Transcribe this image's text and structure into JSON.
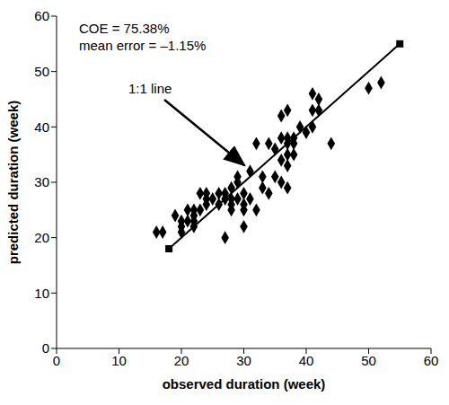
{
  "chart_data": {
    "type": "scatter",
    "x_label": "observed duration (week)",
    "y_label": "predicted duration (week)",
    "annotations": [
      "COE = 75.38%",
      "mean error = –1.15%",
      "1:1 line"
    ],
    "xlim": [
      0,
      60
    ],
    "ylim": [
      0,
      60
    ],
    "xticks": [
      0,
      10,
      20,
      30,
      40,
      50,
      60
    ],
    "yticks": [
      0,
      10,
      20,
      30,
      40,
      50,
      60
    ],
    "grid": false,
    "series": [
      {
        "type": "scatter",
        "marker": "diamond",
        "color": "#000000",
        "x": [
          16,
          17,
          19,
          20,
          20,
          20,
          21,
          21,
          22,
          22,
          22,
          22,
          23,
          23,
          24,
          24,
          24,
          25,
          26,
          26,
          27,
          27,
          27,
          28,
          28,
          28,
          28,
          29,
          29,
          29,
          30,
          30,
          30,
          30,
          31,
          31,
          32,
          32,
          33,
          33,
          34,
          34,
          35,
          35,
          36,
          36,
          36,
          36,
          37,
          37,
          37,
          37,
          37,
          37,
          38,
          38,
          38,
          39,
          40,
          41,
          41,
          41,
          42,
          42,
          44,
          50,
          52
        ],
        "values": [
          21,
          21,
          24,
          23,
          22,
          21,
          25,
          23,
          25,
          22,
          24,
          23,
          25,
          28,
          28,
          26,
          27,
          27,
          26,
          28,
          20,
          28,
          27,
          29,
          27,
          25,
          26,
          27,
          31,
          30,
          25,
          26,
          22,
          28,
          27,
          32,
          37,
          25,
          29,
          31,
          37,
          28,
          31,
          36,
          42,
          38,
          34,
          30,
          43,
          38,
          37,
          35,
          33,
          29,
          38,
          35,
          37,
          40,
          39,
          40,
          46,
          43,
          45,
          43,
          37,
          47,
          48
        ]
      },
      {
        "type": "line",
        "marker": "square",
        "color": "#000000",
        "x": [
          18,
          55
        ],
        "values": [
          18,
          55
        ]
      }
    ]
  }
}
